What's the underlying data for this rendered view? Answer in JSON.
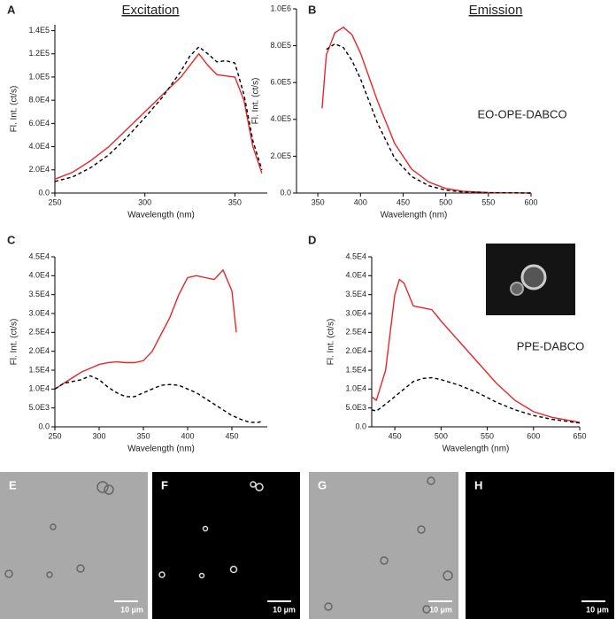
{
  "chart_data": [
    {
      "type": "line",
      "panel": "A",
      "xlabel": "Wavelength (nm)",
      "ylabel": "Fl. Int. (ct/s)",
      "x": [
        250,
        260,
        270,
        280,
        290,
        300,
        310,
        320,
        325,
        330,
        335,
        340,
        345,
        350,
        355,
        360,
        365
      ],
      "series": [
        {
          "color": "#e8262a",
          "style": "solid",
          "values": [
            12000,
            18000,
            28000,
            40000,
            55000,
            70000,
            85000,
            100000,
            110000,
            120000,
            110000,
            102000,
            101000,
            100000,
            80000,
            40000,
            17000
          ]
        },
        {
          "color": "#000000",
          "style": "dashed",
          "values": [
            10000,
            14000,
            22000,
            33000,
            48000,
            65000,
            83000,
            105000,
            118000,
            126000,
            120000,
            113000,
            114000,
            112000,
            85000,
            45000,
            20000
          ]
        }
      ],
      "xlim": [
        250,
        368
      ],
      "xticks": [
        250,
        300,
        350
      ],
      "ylim": [
        0,
        145000
      ],
      "yticks": [
        {
          "value": 0,
          "label": "0.0"
        },
        {
          "value": 20000,
          "label": "2.0E4"
        },
        {
          "value": 40000,
          "label": "4.0E4"
        },
        {
          "value": 60000,
          "label": "6.0E4"
        },
        {
          "value": 80000,
          "label": "8.0E4"
        },
        {
          "value": 100000,
          "label": "1.0E5"
        },
        {
          "value": 120000,
          "label": "1.2E5"
        },
        {
          "value": 140000,
          "label": "1.4E5"
        }
      ]
    },
    {
      "type": "line",
      "panel": "B",
      "xlabel": "Wavelength (nm)",
      "ylabel": "Fl. Int. (ct/s)",
      "x": [
        355,
        360,
        370,
        380,
        390,
        400,
        420,
        440,
        460,
        480,
        500,
        520,
        550,
        600
      ],
      "series": [
        {
          "color": "#e8262a",
          "style": "solid",
          "values": [
            460000,
            750000,
            870000,
            900000,
            860000,
            760000,
            500000,
            270000,
            130000,
            60000,
            25000,
            10000,
            3000,
            0
          ]
        },
        {
          "color": "#000000",
          "style": "dashed",
          "values": [
            null,
            780000,
            810000,
            790000,
            720000,
            620000,
            380000,
            190000,
            90000,
            40000,
            16000,
            6000,
            2000,
            0
          ]
        }
      ],
      "xlim": [
        325,
        600
      ],
      "xticks": [
        350,
        400,
        450,
        500,
        550,
        600
      ],
      "ylim": [
        0,
        1000000
      ],
      "yticks": [
        {
          "value": 0,
          "label": "0.0"
        },
        {
          "value": 200000,
          "label": "2.0E5"
        },
        {
          "value": 400000,
          "label": "4.0E5"
        },
        {
          "value": 600000,
          "label": "6.0E5"
        },
        {
          "value": 800000,
          "label": "8.0E5"
        },
        {
          "value": 1000000,
          "label": "1.0E6"
        }
      ]
    },
    {
      "type": "line",
      "panel": "C",
      "xlabel": "Wavelength (nm)",
      "ylabel": "Fl. Int. (ct/s)",
      "x": [
        250,
        260,
        270,
        280,
        290,
        300,
        310,
        320,
        330,
        340,
        350,
        360,
        370,
        380,
        390,
        400,
        410,
        420,
        430,
        440,
        450,
        455,
        460,
        470,
        480,
        485
      ],
      "series": [
        {
          "color": "#e8262a",
          "style": "solid",
          "values": [
            10000,
            11500,
            13000,
            14500,
            15500,
            16500,
            17000,
            17200,
            17000,
            17000,
            17500,
            20000,
            24500,
            29000,
            35000,
            39500,
            40000,
            39500,
            39000,
            41500,
            36000,
            25000,
            null,
            null,
            null,
            null
          ]
        },
        {
          "color": "#000000",
          "style": "dashed",
          "values": [
            10000,
            11500,
            12000,
            12500,
            13500,
            12500,
            10500,
            9000,
            8000,
            8000,
            9000,
            10000,
            11000,
            11200,
            11000,
            10000,
            9000,
            7500,
            6000,
            4500,
            3000,
            2500,
            2000,
            1200,
            1200,
            1500
          ]
        }
      ],
      "xlim": [
        250,
        490
      ],
      "xticks": [
        250,
        300,
        350,
        400,
        450
      ],
      "ylim": [
        0,
        45000
      ],
      "yticks": [
        {
          "value": 0,
          "label": "0.0"
        },
        {
          "value": 5000,
          "label": "5.0E3"
        },
        {
          "value": 10000,
          "label": "1.0E4"
        },
        {
          "value": 15000,
          "label": "1.5E4"
        },
        {
          "value": 20000,
          "label": "2.0E4"
        },
        {
          "value": 25000,
          "label": "2.5E4"
        },
        {
          "value": 30000,
          "label": "3.0E4"
        },
        {
          "value": 35000,
          "label": "3.5E4"
        },
        {
          "value": 40000,
          "label": "4.0E4"
        },
        {
          "value": 45000,
          "label": "4.5E4"
        }
      ]
    },
    {
      "type": "line",
      "panel": "D",
      "xlabel": "Wavelength (nm)",
      "ylabel": "Fl. Int. (ct/s)",
      "x": [
        425,
        430,
        440,
        450,
        455,
        460,
        470,
        480,
        490,
        500,
        520,
        540,
        560,
        580,
        600,
        620,
        650
      ],
      "series": [
        {
          "color": "#e8262a",
          "style": "solid",
          "values": [
            8000,
            7000,
            15000,
            35000,
            39000,
            38000,
            32000,
            31500,
            31000,
            28000,
            22500,
            17000,
            11500,
            7000,
            4000,
            2500,
            1200
          ]
        },
        {
          "color": "#000000",
          "style": "dashed",
          "values": [
            4500,
            4200,
            6000,
            8000,
            9000,
            10000,
            12000,
            12800,
            13000,
            12500,
            11000,
            9000,
            6500,
            4500,
            3000,
            2000,
            1000
          ]
        }
      ],
      "xlim": [
        425,
        650
      ],
      "xticks": [
        450,
        500,
        550,
        600,
        650
      ],
      "ylim": [
        0,
        45000
      ],
      "yticks": [
        {
          "value": 0,
          "label": "0.0"
        },
        {
          "value": 5000,
          "label": "5.0E3"
        },
        {
          "value": 10000,
          "label": "1.0E4"
        },
        {
          "value": 15000,
          "label": "1.5E4"
        },
        {
          "value": 20000,
          "label": "2.0E4"
        },
        {
          "value": 25000,
          "label": "2.5E4"
        },
        {
          "value": 30000,
          "label": "3.0E4"
        },
        {
          "value": 35000,
          "label": "3.5E4"
        },
        {
          "value": 40000,
          "label": "4.0E4"
        },
        {
          "value": 45000,
          "label": "4.5E4"
        }
      ]
    }
  ],
  "headers": [
    "Excitation",
    "Emission"
  ],
  "compounds": [
    "EO-OPE-DABCO",
    "PPE-DABCO"
  ],
  "micrographs": [
    {
      "label": "E",
      "scale": "10 µm"
    },
    {
      "label": "F",
      "scale": "10 µm"
    },
    {
      "label": "G",
      "scale": "10 µm"
    },
    {
      "label": "H",
      "scale": "10 µm"
    }
  ]
}
